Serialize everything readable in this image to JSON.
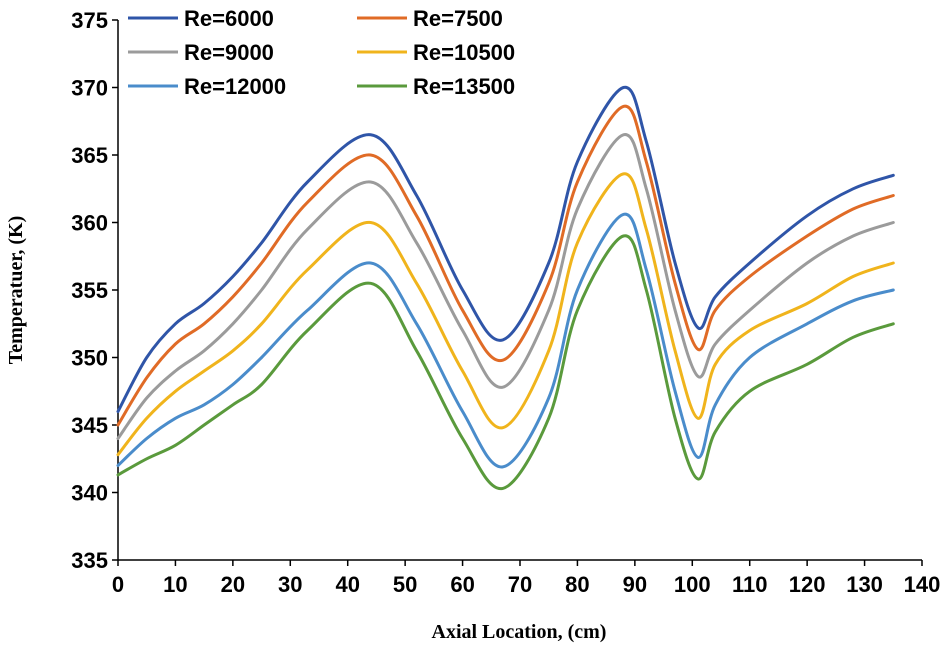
{
  "chart_data": {
    "type": "line",
    "title": "",
    "xlabel": "Axial Location, (cm)",
    "ylabel": "Temperatuer, (K)",
    "xlim": [
      0,
      140
    ],
    "ylim": [
      335,
      375
    ],
    "xticks": [
      0,
      10,
      20,
      30,
      40,
      50,
      60,
      70,
      80,
      90,
      100,
      110,
      120,
      130,
      140
    ],
    "yticks": [
      335,
      340,
      345,
      350,
      355,
      360,
      365,
      370,
      375
    ],
    "grid": false,
    "legend_position": "top-left",
    "x": [
      0,
      5,
      10,
      15,
      20,
      25,
      33,
      44,
      52,
      60,
      67,
      75,
      80,
      88,
      92,
      97,
      101,
      104,
      110,
      120,
      128,
      135
    ],
    "series": [
      {
        "name": "Re=6000",
        "color": "#2f55a8",
        "values": [
          346.0,
          350.0,
          352.5,
          354.0,
          356.0,
          358.5,
          363.0,
          366.5,
          362.0,
          355.0,
          351.3,
          357.0,
          364.5,
          370.0,
          366.0,
          357.0,
          352.2,
          354.5,
          357.0,
          360.5,
          362.5,
          363.5
        ]
      },
      {
        "name": "Re=7500",
        "color": "#e06b26",
        "values": [
          345.0,
          348.5,
          351.0,
          352.5,
          354.5,
          357.0,
          361.5,
          365.0,
          360.5,
          353.5,
          349.8,
          355.5,
          363.0,
          368.6,
          364.5,
          355.5,
          350.6,
          353.5,
          356.0,
          359.0,
          361.0,
          362.0
        ]
      },
      {
        "name": "Re=9000",
        "color": "#9b9b9b",
        "values": [
          344.0,
          347.0,
          349.0,
          350.5,
          352.5,
          355.0,
          359.5,
          363.0,
          358.5,
          352.0,
          347.8,
          353.5,
          361.0,
          366.5,
          362.5,
          353.5,
          348.6,
          351.0,
          353.5,
          357.0,
          359.0,
          360.0
        ]
      },
      {
        "name": "Re=10500",
        "color": "#f0b41c",
        "values": [
          342.8,
          345.5,
          347.5,
          349.0,
          350.5,
          352.5,
          356.5,
          360.0,
          355.5,
          349.0,
          344.8,
          350.5,
          358.5,
          363.6,
          359.5,
          350.5,
          345.5,
          349.5,
          352.0,
          354.0,
          356.0,
          357.0
        ]
      },
      {
        "name": "Re=12000",
        "color": "#4a8ccb",
        "values": [
          342.0,
          344.0,
          345.5,
          346.5,
          348.0,
          350.0,
          353.5,
          357.0,
          352.5,
          346.0,
          341.9,
          347.0,
          355.0,
          360.6,
          356.5,
          347.5,
          342.6,
          346.5,
          350.0,
          352.5,
          354.2,
          355.0
        ]
      },
      {
        "name": "Re=13500",
        "color": "#5a9a3c",
        "values": [
          341.3,
          342.5,
          343.5,
          345.0,
          346.5,
          348.0,
          352.0,
          355.5,
          350.5,
          344.0,
          340.3,
          345.5,
          353.5,
          359.0,
          355.0,
          345.5,
          341.0,
          344.5,
          347.5,
          349.5,
          351.5,
          352.5
        ]
      }
    ]
  }
}
